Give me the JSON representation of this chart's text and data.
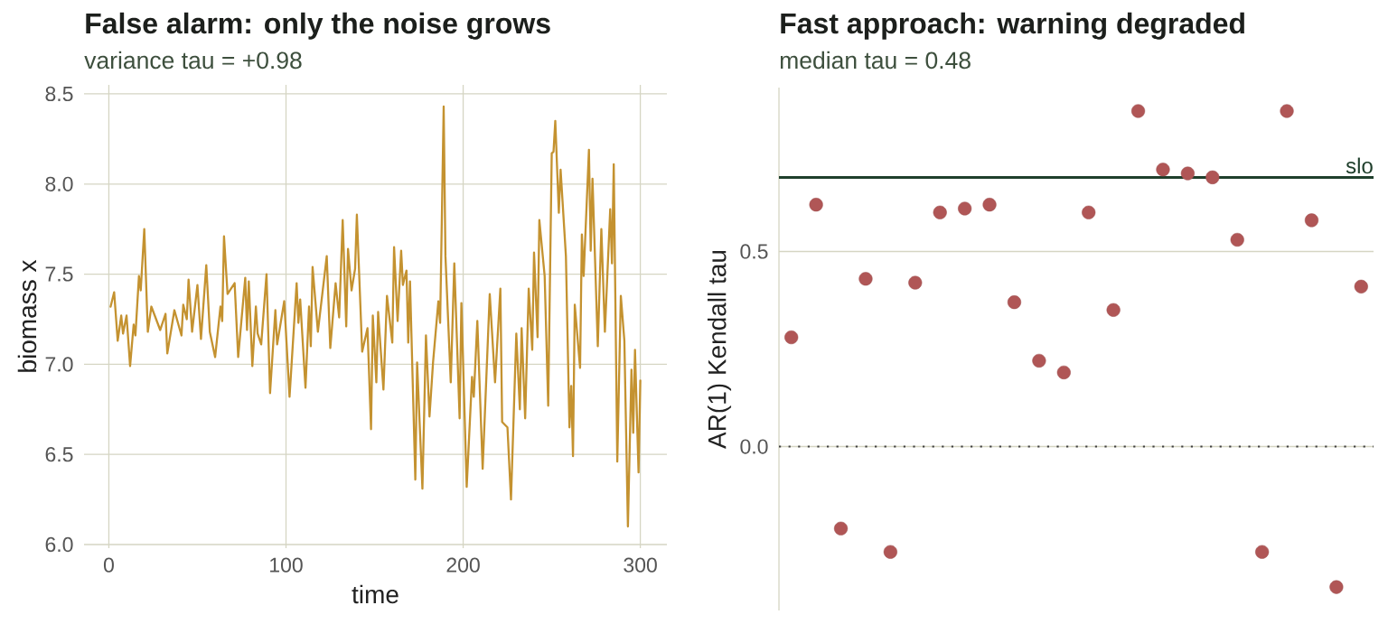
{
  "chart_data": [
    {
      "type": "line",
      "title": "False alarm: only the noise grows",
      "subtitle": "variance tau = +0.98",
      "xlabel": "time",
      "ylabel": "biomass x",
      "color": "#c49230",
      "x": [
        1,
        3,
        5,
        7,
        8,
        10,
        12,
        14,
        15,
        17,
        18,
        20,
        22,
        24,
        29,
        32,
        33,
        37,
        41,
        42,
        44,
        45,
        47,
        50,
        52,
        55,
        57,
        60,
        63,
        64,
        65,
        67,
        71,
        73,
        77,
        78,
        79,
        81,
        83,
        84,
        86,
        89,
        91,
        94,
        95,
        99,
        102,
        106,
        107,
        108,
        111,
        113,
        114,
        115,
        118,
        123,
        125,
        128,
        130,
        132,
        134,
        135,
        137,
        139,
        140,
        143,
        146,
        148,
        149,
        151,
        152,
        155,
        157,
        160,
        161,
        163,
        165,
        166,
        168,
        169,
        170,
        173,
        174,
        177,
        179,
        181,
        183,
        186,
        187,
        189,
        190,
        193,
        195,
        198,
        199,
        202,
        205,
        206,
        208,
        211,
        215,
        218,
        221,
        222,
        225,
        227,
        230,
        232,
        233,
        235,
        237,
        239,
        240,
        242,
        243,
        246,
        248,
        250,
        251,
        252,
        254,
        255,
        258,
        260,
        261,
        262,
        263,
        266,
        267,
        268,
        271,
        272,
        273,
        276,
        278,
        280,
        283,
        284,
        285,
        287,
        289,
        291,
        293,
        295,
        296,
        297,
        299,
        300
      ],
      "values": [
        7.32,
        7.4,
        7.13,
        7.27,
        7.17,
        7.27,
        6.99,
        7.22,
        7.16,
        7.49,
        7.41,
        7.75,
        7.18,
        7.32,
        7.19,
        7.28,
        7.06,
        7.3,
        7.16,
        7.33,
        7.25,
        7.47,
        7.18,
        7.44,
        7.14,
        7.55,
        7.18,
        7.04,
        7.32,
        7.24,
        7.71,
        7.39,
        7.45,
        7.04,
        7.48,
        7.19,
        7.46,
        6.99,
        7.32,
        7.17,
        7.11,
        7.5,
        6.84,
        7.3,
        7.11,
        7.35,
        6.82,
        7.45,
        7.23,
        7.36,
        6.87,
        7.32,
        7.1,
        7.54,
        7.18,
        7.6,
        7.09,
        7.45,
        7.26,
        7.8,
        7.21,
        7.64,
        7.41,
        7.53,
        7.83,
        7.07,
        7.2,
        6.64,
        7.27,
        6.9,
        7.29,
        6.86,
        7.38,
        7.12,
        7.65,
        7.24,
        7.63,
        7.44,
        7.52,
        7.12,
        7.46,
        6.36,
        7.01,
        6.31,
        7.16,
        6.71,
        7.01,
        7.35,
        7.23,
        8.43,
        7.6,
        6.9,
        7.56,
        6.7,
        7.34,
        6.32,
        6.93,
        6.82,
        7.24,
        6.42,
        7.39,
        6.9,
        7.42,
        6.68,
        6.65,
        6.25,
        7.17,
        6.75,
        7.2,
        6.7,
        7.42,
        7.08,
        7.62,
        7.15,
        7.8,
        7.49,
        6.77,
        8.17,
        8.18,
        8.35,
        7.84,
        8.08,
        7.6,
        6.65,
        6.88,
        6.49,
        7.33,
        6.98,
        7.72,
        7.49,
        8.19,
        7.63,
        8.03,
        7.1,
        7.75,
        7.18,
        7.86,
        7.56,
        8.11,
        6.46,
        7.38,
        7.13,
        6.1,
        6.97,
        6.62,
        7.08,
        6.4,
        6.91
      ],
      "xlim": [
        -14,
        315
      ],
      "ylim": [
        5.98,
        8.55
      ],
      "xticks": [
        0,
        100,
        200,
        300
      ],
      "yticks": [
        {
          "value": 6,
          "label": "6.0"
        },
        6.5,
        {
          "value": 7,
          "label": "7.0"
        },
        7.5,
        {
          "value": 8,
          "label": "8.0"
        },
        8.5
      ],
      "grid": true
    },
    {
      "type": "scatter",
      "title": "Fast approach: warning degraded",
      "subtitle": "median tau = 0.48",
      "ylabel": "AR(1) Kendall tau",
      "color": "#b05656",
      "marker": "circle",
      "categories": [
        null,
        null,
        null,
        null,
        null,
        null,
        null,
        null,
        null,
        null,
        null,
        null,
        null,
        null,
        null,
        null,
        null,
        null,
        null,
        null,
        null,
        null,
        null,
        null
      ],
      "values": [
        0.28,
        0.62,
        -0.21,
        0.43,
        -0.27,
        0.42,
        0.6,
        0.61,
        0.62,
        0.37,
        0.22,
        0.19,
        0.6,
        0.35,
        0.86,
        0.71,
        0.7,
        0.69,
        0.53,
        -0.27,
        0.86,
        0.58,
        -0.36,
        0.41
      ],
      "ylim": [
        -0.42,
        0.92
      ],
      "yticks": [
        {
          "value": 0,
          "label": "0.0"
        },
        0.5
      ],
      "grid": "y",
      "ref_lines": [
        {
          "axis": "y",
          "value": 0.69,
          "label": "slo",
          "color": "#1f3f2c",
          "line_style": "solid"
        },
        {
          "axis": "y",
          "value": 0,
          "color": "#3f3f3f",
          "line_style": "dotted"
        }
      ]
    }
  ]
}
